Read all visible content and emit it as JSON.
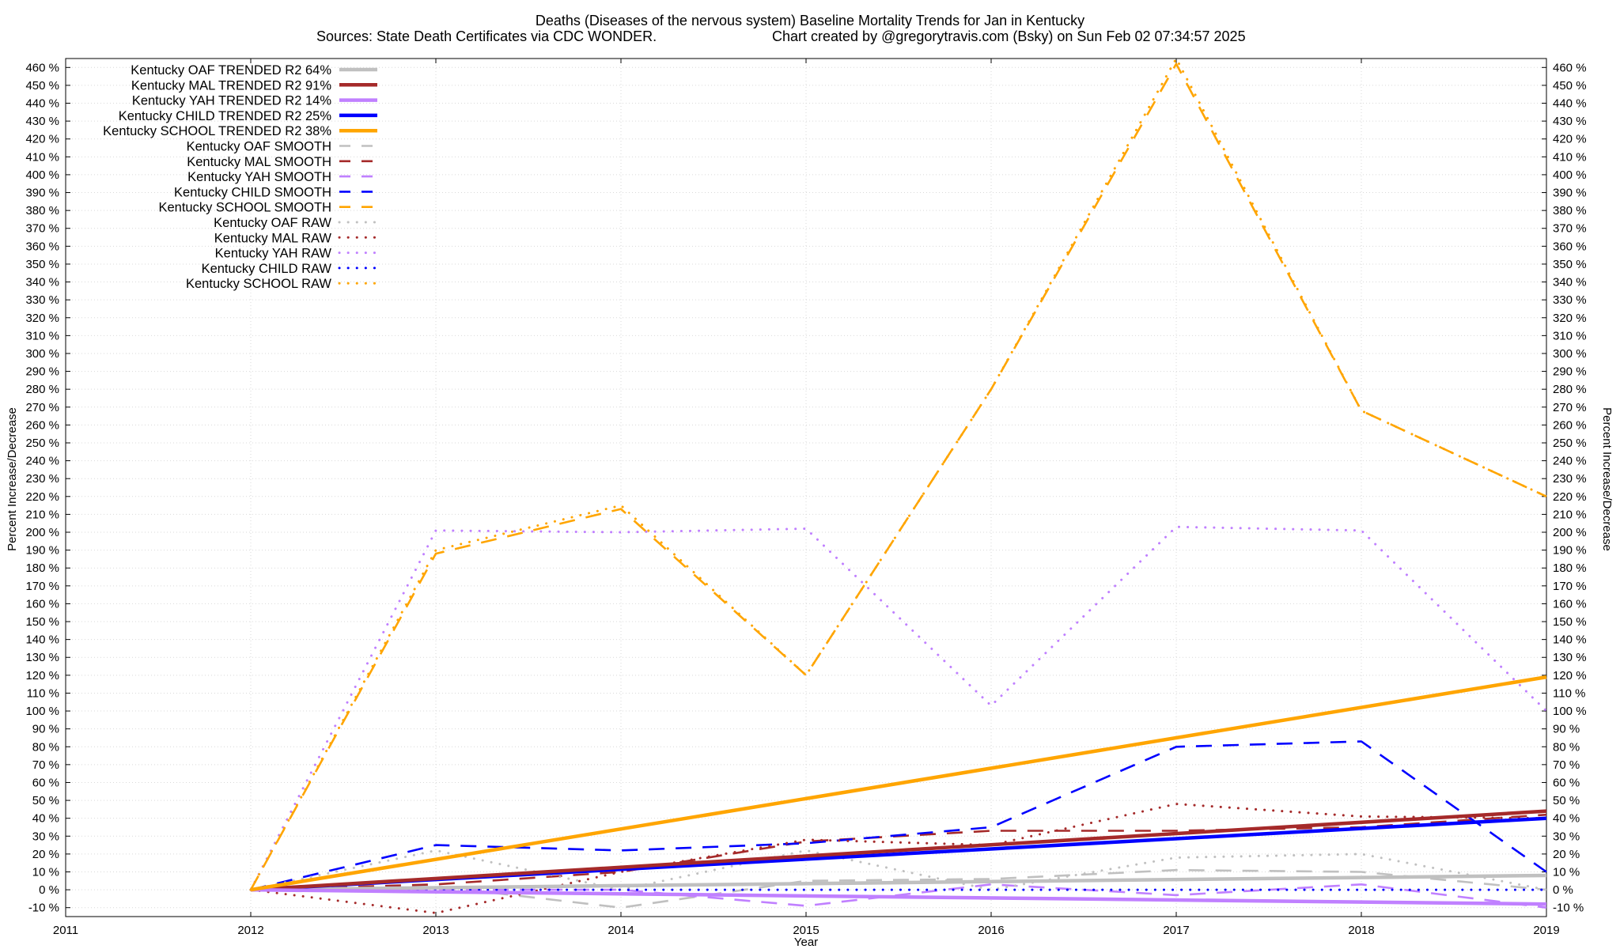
{
  "chart_data": {
    "type": "line",
    "title": "Deaths (Diseases of the nervous system)  Baseline Mortality Trends for Jan in Kentucky",
    "subtitle_left": "Sources: State Death Certificates via CDC WONDER.",
    "subtitle_right": "Chart created by @gregorytravis.com (Bsky) on Sun Feb 02 07:34:57 2025",
    "xlabel": "Year",
    "ylabel": "Percent Increase/Decrease",
    "xlim": [
      2011,
      2019
    ],
    "ylim": [
      -15,
      465
    ],
    "x_ticks": [
      2011,
      2012,
      2013,
      2014,
      2015,
      2016,
      2017,
      2018,
      2019
    ],
    "y_ticks": [
      -10,
      0,
      10,
      20,
      30,
      40,
      50,
      60,
      70,
      80,
      90,
      100,
      110,
      120,
      130,
      140,
      150,
      160,
      170,
      180,
      190,
      200,
      210,
      220,
      230,
      240,
      250,
      260,
      270,
      280,
      290,
      300,
      310,
      320,
      330,
      340,
      350,
      360,
      370,
      380,
      390,
      400,
      410,
      420,
      430,
      440,
      450,
      460
    ],
    "y_tick_suffix": " %",
    "grid": true,
    "legend_position": "top-left",
    "series": [
      {
        "name": "Kentucky OAF TRENDED R2  64%",
        "style": "solid",
        "color": "#c0c0c0",
        "x": [
          2012,
          2019
        ],
        "y": [
          0,
          8
        ]
      },
      {
        "name": "Kentucky MAL TRENDED R2  91%",
        "style": "solid",
        "color": "#a52a2a",
        "x": [
          2012,
          2019
        ],
        "y": [
          0,
          44
        ]
      },
      {
        "name": "Kentucky YAH TRENDED R2  14%",
        "style": "solid",
        "color": "#c080ff",
        "x": [
          2012,
          2019
        ],
        "y": [
          0,
          -8
        ]
      },
      {
        "name": "Kentucky CHILD TRENDED R2  25%",
        "style": "solid",
        "color": "#0000ff",
        "x": [
          2012,
          2019
        ],
        "y": [
          0,
          40
        ]
      },
      {
        "name": "Kentucky SCHOOL TRENDED R2  38%",
        "style": "solid",
        "color": "#ffa500",
        "x": [
          2012,
          2019
        ],
        "y": [
          0,
          119
        ]
      },
      {
        "name": "Kentucky OAF SMOOTH",
        "style": "dashed",
        "color": "#c0c0c0",
        "x": [
          2012,
          2013,
          2014,
          2015,
          2016,
          2017,
          2018,
          2019
        ],
        "y": [
          0,
          2,
          -10,
          5,
          6,
          11,
          10,
          0
        ]
      },
      {
        "name": "Kentucky MAL SMOOTH",
        "style": "dashed",
        "color": "#a52a2a",
        "x": [
          2012,
          2013,
          2014,
          2015,
          2016,
          2017,
          2018,
          2019
        ],
        "y": [
          0,
          3,
          10,
          27,
          33,
          33,
          35,
          42
        ]
      },
      {
        "name": "Kentucky YAH SMOOTH",
        "style": "dashed",
        "color": "#c080ff",
        "x": [
          2012,
          2013,
          2014,
          2015,
          2016,
          2017,
          2018,
          2019
        ],
        "y": [
          0,
          0,
          0,
          -9,
          3,
          -3,
          3,
          -10
        ]
      },
      {
        "name": "Kentucky CHILD SMOOTH",
        "style": "dashed",
        "color": "#0000ff",
        "x": [
          2012,
          2013,
          2014,
          2015,
          2016,
          2017,
          2018,
          2019
        ],
        "y": [
          0,
          25,
          22,
          26,
          35,
          80,
          83,
          10
        ]
      },
      {
        "name": "Kentucky SCHOOL SMOOTH",
        "style": "dashed",
        "color": "#ffa500",
        "x": [
          2012,
          2013,
          2014,
          2015,
          2016,
          2017,
          2018,
          2019
        ],
        "y": [
          0,
          188,
          213,
          120,
          280,
          462,
          268,
          220
        ]
      },
      {
        "name": "Kentucky OAF RAW",
        "style": "dotted",
        "color": "#c0c0c0",
        "x": [
          2012,
          2013,
          2014,
          2015,
          2016,
          2017,
          2018,
          2019
        ],
        "y": [
          0,
          22,
          0,
          22,
          0,
          18,
          20,
          0
        ]
      },
      {
        "name": "Kentucky MAL RAW",
        "style": "dotted",
        "color": "#a52a2a",
        "x": [
          2012,
          2013,
          2014,
          2015,
          2016,
          2017,
          2018,
          2019
        ],
        "y": [
          0,
          -13,
          10,
          28,
          25,
          48,
          41,
          40
        ]
      },
      {
        "name": "Kentucky YAH RAW",
        "style": "dotted",
        "color": "#c080ff",
        "x": [
          2012,
          2013,
          2014,
          2015,
          2016,
          2017,
          2018,
          2019
        ],
        "y": [
          0,
          201,
          200,
          202,
          103,
          203,
          201,
          100
        ]
      },
      {
        "name": "Kentucky CHILD RAW",
        "style": "dotted",
        "color": "#0000ff",
        "x": [
          2012,
          2013,
          2014,
          2015,
          2016,
          2017,
          2018,
          2019
        ],
        "y": [
          0,
          0,
          0,
          0,
          0,
          0,
          0,
          0
        ]
      },
      {
        "name": "Kentucky SCHOOL RAW",
        "style": "dotted",
        "color": "#ffa500",
        "x": [
          2012,
          2013,
          2014,
          2015,
          2016,
          2017,
          2018,
          2019
        ],
        "y": [
          0,
          190,
          215,
          120,
          280,
          465,
          268,
          220
        ]
      }
    ]
  }
}
